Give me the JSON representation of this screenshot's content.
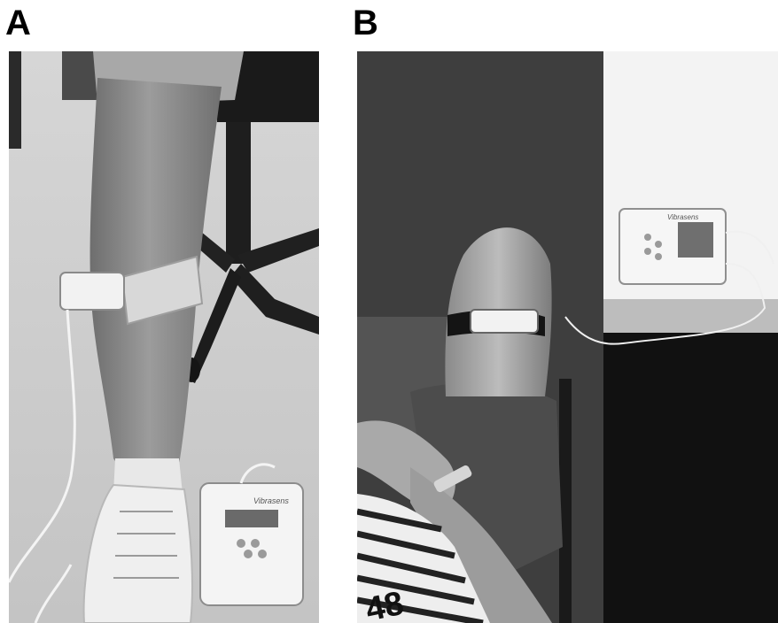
{
  "figure": {
    "panels": [
      {
        "letter": "A",
        "device_brand": "Vibrasens"
      },
      {
        "letter": "B",
        "device_brand": "Vibrasens",
        "shirt_print": "48"
      }
    ]
  },
  "colors": {
    "background": "#ffffff",
    "letter": "#000000"
  }
}
